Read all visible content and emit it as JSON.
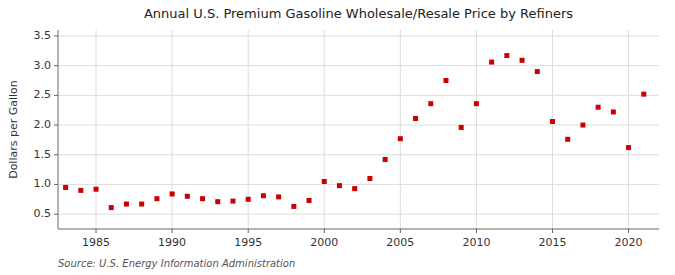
{
  "chart_data": {
    "type": "scatter",
    "title": "Annual U.S. Premium Gasoline Wholesale/Resale Price by Refiners",
    "y_label": "Dollars per Gallon",
    "annotations": [
      "Source: U.S. Energy Information Administration"
    ],
    "x": [
      1983,
      1984,
      1985,
      1986,
      1987,
      1988,
      1989,
      1990,
      1991,
      1992,
      1993,
      1994,
      1995,
      1996,
      1997,
      1998,
      1999,
      2000,
      2001,
      2002,
      2003,
      2004,
      2005,
      2006,
      2007,
      2008,
      2009,
      2010,
      2011,
      2012,
      2013,
      2014,
      2015,
      2016,
      2017,
      2018,
      2019,
      2020,
      2021
    ],
    "values": [
      0.95,
      0.9,
      0.92,
      0.61,
      0.67,
      0.67,
      0.76,
      0.84,
      0.8,
      0.76,
      0.71,
      0.72,
      0.75,
      0.81,
      0.79,
      0.63,
      0.73,
      1.05,
      0.98,
      0.93,
      1.1,
      1.42,
      1.77,
      2.11,
      2.36,
      2.75,
      1.96,
      2.36,
      3.06,
      3.17,
      3.09,
      2.9,
      2.06,
      1.76,
      2.0,
      2.3,
      2.22,
      1.62,
      2.52
    ],
    "color": "#cc0000",
    "marker": "square",
    "xlim": [
      1982.5,
      2022
    ],
    "ylim": [
      0.25,
      3.6
    ],
    "xticks": [
      1985,
      1990,
      1995,
      2000,
      2005,
      2010,
      2015,
      2020
    ],
    "yticks": [
      0.5,
      {
        "value": 1.0,
        "label": "1.0"
      },
      1.5,
      {
        "value": 2.0,
        "label": "2.0"
      },
      2.5,
      {
        "value": 3.0,
        "label": "3.0"
      },
      3.5
    ],
    "grid": true
  }
}
